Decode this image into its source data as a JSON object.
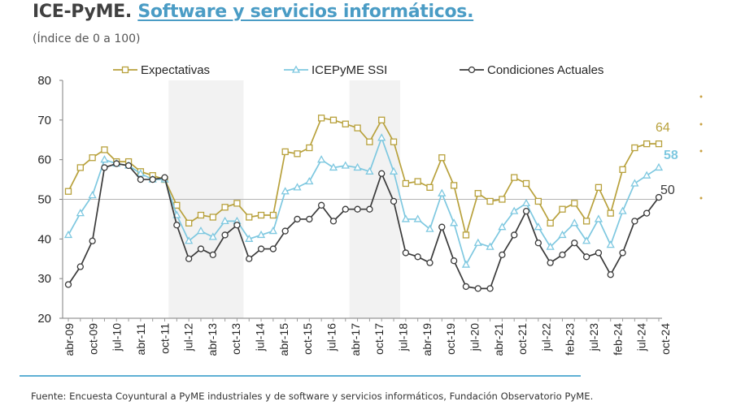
{
  "header": {
    "title_prefix": "ICE-PyME.",
    "title_link": "Software y servicios informáticos.",
    "subtitle": "(Índice de 0 a 100)"
  },
  "chart_data": {
    "type": "line",
    "ylim": [
      20,
      80
    ],
    "yticks": [
      20,
      30,
      40,
      50,
      60,
      70,
      80
    ],
    "reference_line": 50,
    "x_tick_labels": [
      "abr-09",
      "oct-09",
      "jul-10",
      "abr-11",
      "oct-11",
      "jul-12",
      "abr-13",
      "oct-13",
      "jul-14",
      "abr-15",
      "oct-15",
      "jul-16",
      "abr-17",
      "oct-17",
      "jul-18",
      "abr-19",
      "oct-19",
      "jul-20",
      "abr-21",
      "oct-21",
      "jul-22",
      "feb-23",
      "jul-23",
      "feb-24",
      "jul-24",
      "oct-24"
    ],
    "shaded_ranges": [
      [
        9,
        14
      ],
      [
        24,
        27
      ]
    ],
    "legend": [
      "Expectativas",
      "ICEPyME SSI",
      "Condiciones Actuales"
    ],
    "end_labels": [
      "64",
      "58",
      "50"
    ],
    "series": [
      {
        "name": "Expectativas",
        "color": "#b8a13c",
        "marker": "square",
        "values": [
          52,
          58,
          60.5,
          62.5,
          59.5,
          59.5,
          57,
          56,
          55,
          48.5,
          44,
          46,
          45.5,
          48,
          49,
          45.5,
          46,
          46,
          62,
          61.5,
          63,
          70.5,
          70,
          69,
          68,
          64.5,
          70,
          64.5,
          54,
          54.5,
          53,
          60.5,
          53.5,
          41,
          51.5,
          49.5,
          50,
          55.5,
          54,
          49.5,
          44,
          47.5,
          49,
          44.5,
          53,
          46.5,
          57.5,
          63,
          64,
          64
        ]
      },
      {
        "name": "ICEPyME SSI",
        "color": "#7ec8e0",
        "marker": "triangle",
        "values": [
          41,
          46.5,
          51,
          60,
          59,
          58.5,
          56.5,
          55,
          55,
          46,
          39.5,
          42,
          40.5,
          44.5,
          44.5,
          40,
          41,
          42,
          52,
          53,
          54.5,
          60,
          58,
          58.5,
          58,
          57,
          65.5,
          57,
          45,
          45,
          42.5,
          51.5,
          44,
          33.5,
          39,
          38,
          43,
          47,
          49,
          43,
          38,
          41,
          44,
          39.5,
          45,
          38.5,
          47,
          54,
          56,
          58
        ]
      },
      {
        "name": "Condiciones Actuales",
        "color": "#3a3a3a",
        "marker": "circle",
        "values": [
          28.5,
          33,
          39.5,
          58,
          59,
          58.5,
          55,
          55,
          55.5,
          43.5,
          35,
          37.5,
          36,
          41,
          43.5,
          35,
          37.5,
          37.5,
          42,
          45,
          45,
          48.5,
          44.5,
          47.5,
          47.5,
          47.5,
          56.5,
          49.5,
          36.5,
          35.5,
          34,
          43,
          34.5,
          28,
          27.5,
          27.5,
          36,
          41,
          47,
          39,
          34,
          36,
          39,
          35.5,
          36.5,
          31,
          36.5,
          44.5,
          46.5,
          50.5
        ]
      }
    ]
  },
  "footer": {
    "source": "Fuente: Encuesta Coyuntural a PyME industriales y de software y servicios informáticos, Fundación Observatorio PyME."
  }
}
